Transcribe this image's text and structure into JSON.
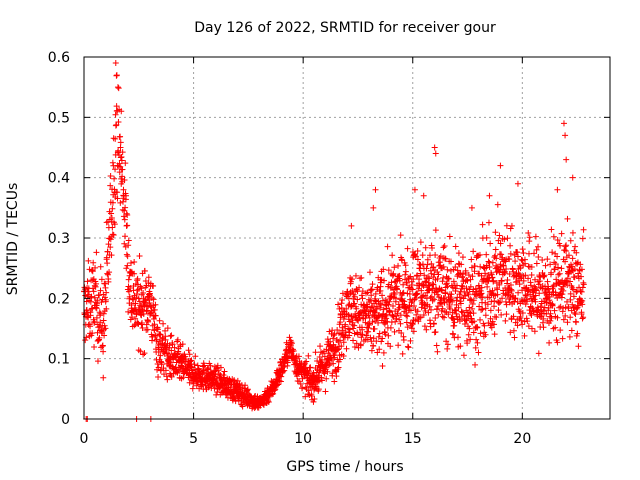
{
  "chart_data": {
    "type": "scatter",
    "title": "Day 126 of 2022, SRMTID for receiver gour",
    "xlabel": "GPS time / hours",
    "ylabel": "SRMTID / TECUs",
    "xlim": [
      0,
      24
    ],
    "ylim": [
      0,
      0.6
    ],
    "xticks": [
      0,
      5,
      10,
      15,
      20
    ],
    "yticks": [
      0,
      0.1,
      0.2,
      0.3,
      0.4,
      0.5,
      0.6
    ],
    "xtick_labels": [
      "0",
      "5",
      "10",
      "15",
      "20"
    ],
    "ytick_labels": [
      "0",
      "0.1",
      "0.2",
      "0.3",
      "0.4",
      "0.5",
      "0.6"
    ],
    "grid": true,
    "marker": "+",
    "color": "#ff0000",
    "trend": [
      [
        0.0,
        0.18
      ],
      [
        0.5,
        0.2
      ],
      [
        0.9,
        0.15
      ],
      [
        1.2,
        0.32
      ],
      [
        1.5,
        0.48
      ],
      [
        1.8,
        0.38
      ],
      [
        2.1,
        0.22
      ],
      [
        2.5,
        0.18
      ],
      [
        3.0,
        0.2
      ],
      [
        3.4,
        0.12
      ],
      [
        4.0,
        0.1
      ],
      [
        5.0,
        0.075
      ],
      [
        6.0,
        0.065
      ],
      [
        7.0,
        0.045
      ],
      [
        8.0,
        0.025
      ],
      [
        8.6,
        0.05
      ],
      [
        9.1,
        0.09
      ],
      [
        9.4,
        0.12
      ],
      [
        9.8,
        0.08
      ],
      [
        10.4,
        0.06
      ],
      [
        11.0,
        0.09
      ],
      [
        11.6,
        0.13
      ],
      [
        12.0,
        0.19
      ],
      [
        13.0,
        0.16
      ],
      [
        14.0,
        0.19
      ],
      [
        15.0,
        0.21
      ],
      [
        16.0,
        0.22
      ],
      [
        17.0,
        0.2
      ],
      [
        18.0,
        0.2
      ],
      [
        19.0,
        0.24
      ],
      [
        20.0,
        0.22
      ],
      [
        21.0,
        0.2
      ],
      [
        22.0,
        0.23
      ],
      [
        22.8,
        0.2
      ]
    ],
    "spread": [
      [
        0.0,
        0.05
      ],
      [
        1.0,
        0.07
      ],
      [
        1.5,
        0.08
      ],
      [
        2.2,
        0.06
      ],
      [
        3.0,
        0.05
      ],
      [
        4.0,
        0.03
      ],
      [
        5.0,
        0.02
      ],
      [
        7.0,
        0.015
      ],
      [
        8.0,
        0.01
      ],
      [
        9.0,
        0.015
      ],
      [
        10.0,
        0.02
      ],
      [
        11.0,
        0.03
      ],
      [
        12.0,
        0.05
      ],
      [
        14.0,
        0.06
      ],
      [
        16.0,
        0.07
      ],
      [
        18.0,
        0.07
      ],
      [
        20.0,
        0.07
      ],
      [
        22.8,
        0.07
      ]
    ],
    "outliers": [
      [
        0.1,
        0.0
      ],
      [
        0.15,
        0.0
      ],
      [
        2.4,
        0.0
      ],
      [
        3.05,
        0.0
      ],
      [
        1.45,
        0.59
      ],
      [
        1.5,
        0.57
      ],
      [
        1.55,
        0.55
      ],
      [
        1.7,
        0.51
      ],
      [
        16.0,
        0.45
      ],
      [
        16.05,
        0.44
      ],
      [
        15.1,
        0.38
      ],
      [
        15.5,
        0.37
      ],
      [
        13.3,
        0.38
      ],
      [
        19.0,
        0.42
      ],
      [
        21.9,
        0.49
      ],
      [
        21.95,
        0.47
      ],
      [
        22.0,
        0.43
      ],
      [
        22.3,
        0.4
      ],
      [
        21.6,
        0.38
      ],
      [
        19.8,
        0.39
      ],
      [
        17.7,
        0.35
      ],
      [
        12.2,
        0.32
      ],
      [
        13.2,
        0.35
      ],
      [
        18.5,
        0.37
      ]
    ],
    "point_count": 2600
  }
}
